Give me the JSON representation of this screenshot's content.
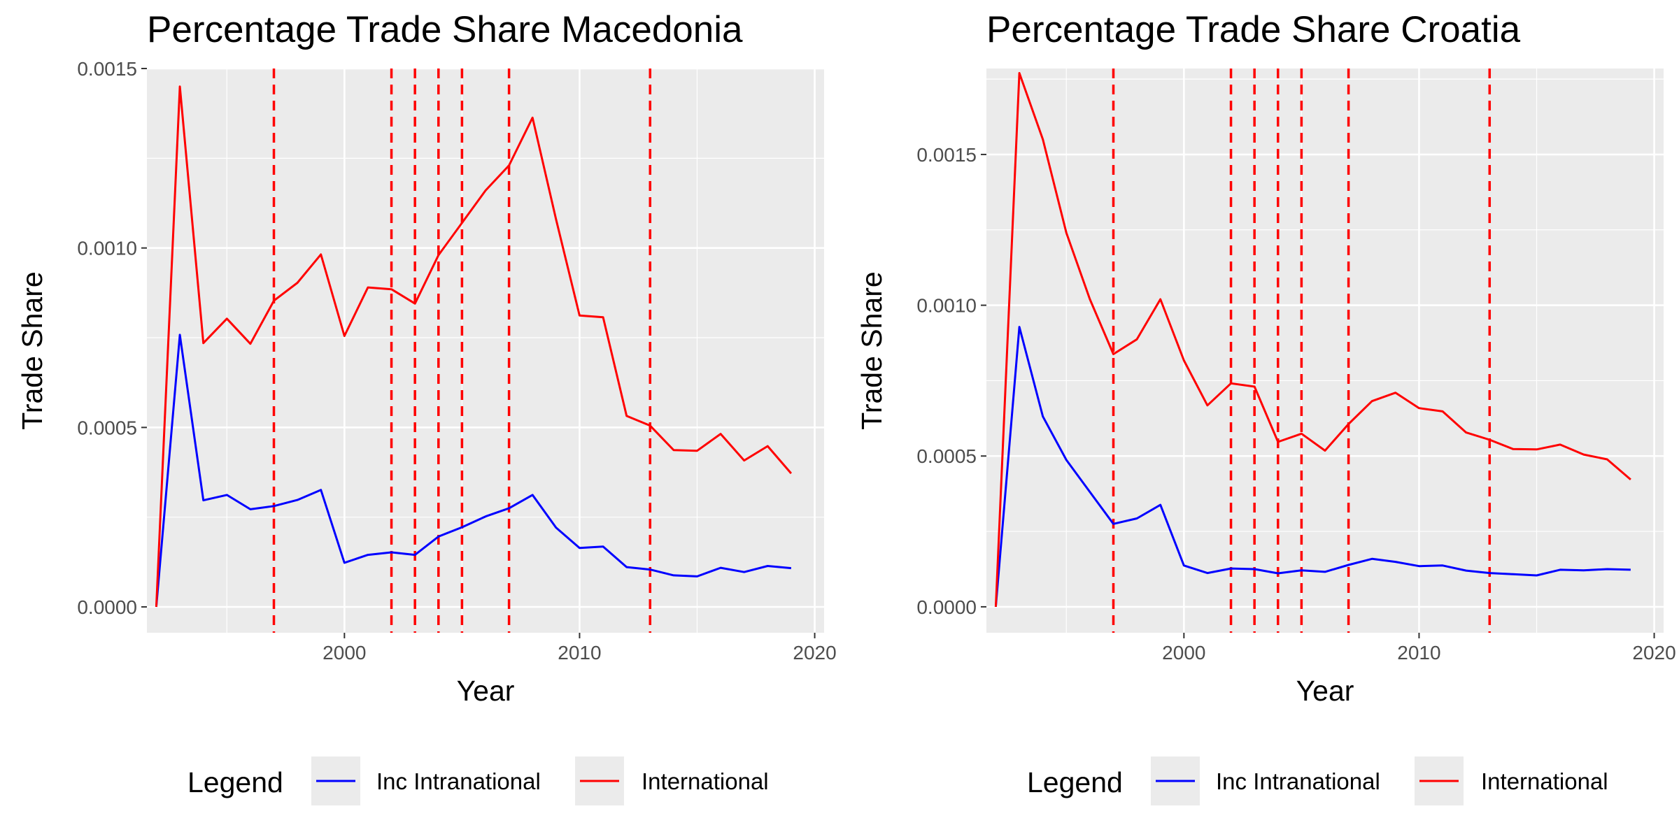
{
  "chart_data": [
    {
      "type": "line",
      "title": "Percentage Trade Share  Macedonia",
      "xlabel": "Year",
      "ylabel": "Trade Share",
      "xlim": [
        1991.6,
        2020.4
      ],
      "ylim": [
        -7.2e-05,
        0.0015
      ],
      "x_ticks": [
        2000,
        2010,
        2020
      ],
      "x_tick_labels": [
        "2000",
        "2010",
        "2020"
      ],
      "y_ticks": [
        0,
        0.0005,
        0.001,
        0.0015
      ],
      "y_tick_labels": [
        "0.0000",
        "0.0005",
        "0.0010",
        "0.0015"
      ],
      "grid": true,
      "x": [
        1992,
        1993,
        1994,
        1995,
        1996,
        1997,
        1998,
        1999,
        2000,
        2001,
        2002,
        2003,
        2004,
        2005,
        2006,
        2007,
        2008,
        2009,
        2010,
        2011,
        2012,
        2013,
        2014,
        2015,
        2016,
        2017,
        2018,
        2019
      ],
      "series": [
        {
          "name": "Inc Intranational",
          "color": "#0000ff",
          "values": [
            0.0,
            0.000758,
            0.000297,
            0.000312,
            0.000272,
            0.000281,
            0.000298,
            0.000326,
            0.000123,
            0.000145,
            0.000152,
            0.000145,
            0.000196,
            0.000222,
            0.000252,
            0.000275,
            0.000312,
            0.000221,
            0.000164,
            0.000168,
            0.000111,
            0.000104,
            8.8e-05,
            8.5e-05,
            0.000109,
            9.7e-05,
            0.000114,
            0.000108
          ]
        },
        {
          "name": "International",
          "color": "#ff0000",
          "values": [
            0.0,
            0.00145,
            0.000735,
            0.000803,
            0.000733,
            0.000853,
            0.000903,
            0.000982,
            0.000755,
            0.00089,
            0.000885,
            0.000845,
            0.00098,
            0.00107,
            0.00116,
            0.00123,
            0.001363,
            0.00108,
            0.000812,
            0.000807,
            0.000532,
            0.000505,
            0.000437,
            0.000435,
            0.000482,
            0.000408,
            0.000448,
            0.000372
          ]
        }
      ],
      "vlines": [
        1997,
        2002,
        2003,
        2004,
        2005,
        2007,
        2013
      ],
      "vline_color": "#ff0000",
      "legend": {
        "title": "Legend",
        "position": "bottom"
      }
    },
    {
      "type": "line",
      "title": "Percentage Trade Share  Croatia",
      "xlabel": "Year",
      "ylabel": "Trade Share",
      "xlim": [
        1991.6,
        2020.4
      ],
      "ylim": [
        -8.6e-05,
        0.001785
      ],
      "x_ticks": [
        2000,
        2010,
        2020
      ],
      "x_tick_labels": [
        "2000",
        "2010",
        "2020"
      ],
      "y_ticks": [
        0,
        0.0005,
        0.001,
        0.0015
      ],
      "y_tick_labels": [
        "0.0000",
        "0.0005",
        "0.0010",
        "0.0015"
      ],
      "grid": true,
      "x": [
        1992,
        1993,
        1994,
        1995,
        1996,
        1997,
        1998,
        1999,
        2000,
        2001,
        2002,
        2003,
        2004,
        2005,
        2006,
        2007,
        2008,
        2009,
        2010,
        2011,
        2012,
        2013,
        2014,
        2015,
        2016,
        2017,
        2018,
        2019
      ],
      "series": [
        {
          "name": "Inc Intranational",
          "color": "#0000ff",
          "values": [
            0.0,
            0.000928,
            0.000631,
            0.000487,
            0.000381,
            0.000275,
            0.000293,
            0.000338,
            0.000137,
            0.000112,
            0.000127,
            0.000125,
            0.000111,
            0.000121,
            0.000116,
            0.000139,
            0.000159,
            0.000149,
            0.000135,
            0.000137,
            0.00012,
            0.000112,
            0.000108,
            0.000104,
            0.000123,
            0.000121,
            0.000125,
            0.000123
          ]
        },
        {
          "name": "International",
          "color": "#ff0000",
          "values": [
            0.0,
            0.00177,
            0.00155,
            0.00124,
            0.00102,
            0.000838,
            0.000887,
            0.00102,
            0.000817,
            0.000668,
            0.000741,
            0.00073,
            0.000547,
            0.000574,
            0.000518,
            0.000606,
            0.000682,
            0.00071,
            0.000659,
            0.000648,
            0.000578,
            0.000554,
            0.000523,
            0.000522,
            0.000538,
            0.000505,
            0.000489,
            0.000422
          ]
        }
      ],
      "vlines": [
        1997,
        2002,
        2003,
        2004,
        2005,
        2007,
        2013
      ],
      "vline_color": "#ff0000",
      "legend": {
        "title": "Legend",
        "position": "bottom"
      }
    }
  ]
}
